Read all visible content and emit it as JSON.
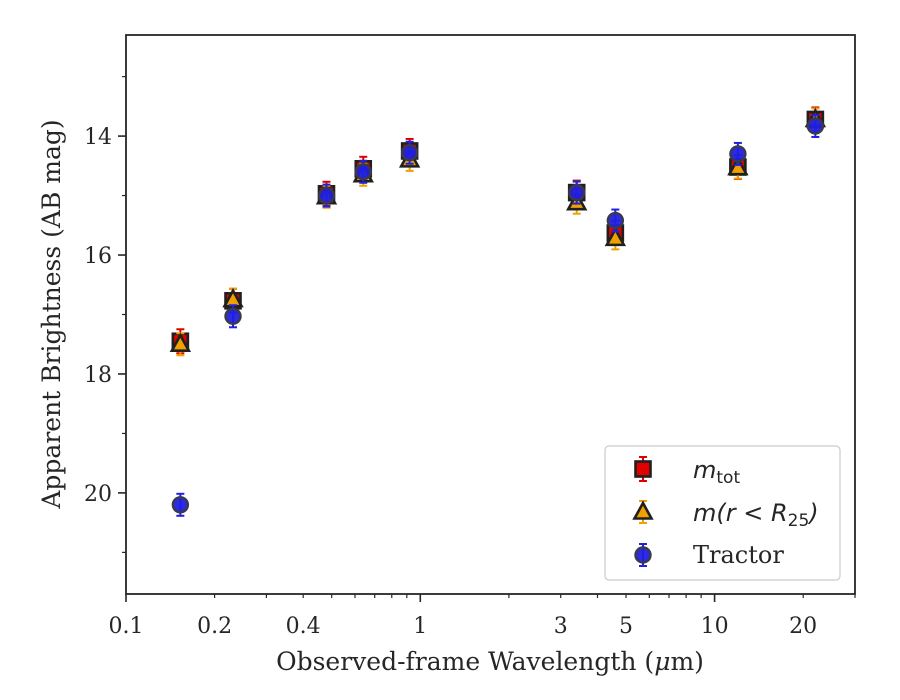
{
  "chart_data": {
    "type": "scatter",
    "xlabel_main": "Observed-frame Wavelength (",
    "xlabel_mu": "μ",
    "xlabel_unit": "m)",
    "ylabel": "Apparent Brightness (AB mag)",
    "x_scale": "log",
    "xlim": [
      0.1,
      30
    ],
    "ylim": [
      21.7,
      12.3
    ],
    "y_inverted": true,
    "x_ticks": [
      0.1,
      0.2,
      0.4,
      1,
      3,
      5,
      10,
      20
    ],
    "x_tick_labels": [
      "0.1",
      "0.2",
      "0.4",
      "1",
      "3",
      "5",
      "10",
      "20"
    ],
    "y_ticks": [
      14,
      16,
      18,
      20
    ],
    "y_tick_labels": [
      "14",
      "16",
      "18",
      "20"
    ],
    "grid": false,
    "legend_position": "lower-right",
    "series": [
      {
        "name_base": "m",
        "name_sub": "tot",
        "marker": "square",
        "color": "#e00000",
        "x": [
          0.153,
          0.231,
          0.48,
          0.64,
          0.92,
          3.4,
          4.6,
          12.0,
          22.0
        ],
        "y": [
          17.45,
          16.77,
          14.97,
          14.55,
          14.25,
          14.95,
          15.63,
          14.52,
          13.72
        ]
      },
      {
        "name_math": "m(r < R",
        "name_sub": "25",
        "name_close": ")",
        "marker": "triangle",
        "color": "#f0a000",
        "x": [
          0.153,
          0.231,
          0.48,
          0.64,
          0.92,
          3.4,
          4.6,
          12.0,
          22.0
        ],
        "y": [
          17.5,
          16.75,
          15.02,
          14.65,
          14.4,
          15.12,
          15.72,
          14.53,
          13.72
        ]
      },
      {
        "name": "Tractor",
        "marker": "circle",
        "color": "#2020e0",
        "x": [
          0.153,
          0.231,
          0.48,
          0.64,
          0.92,
          3.4,
          4.6,
          12.0,
          22.0
        ],
        "y": [
          20.2,
          17.03,
          15.0,
          14.6,
          14.28,
          14.95,
          15.42,
          14.3,
          13.83
        ]
      }
    ]
  }
}
